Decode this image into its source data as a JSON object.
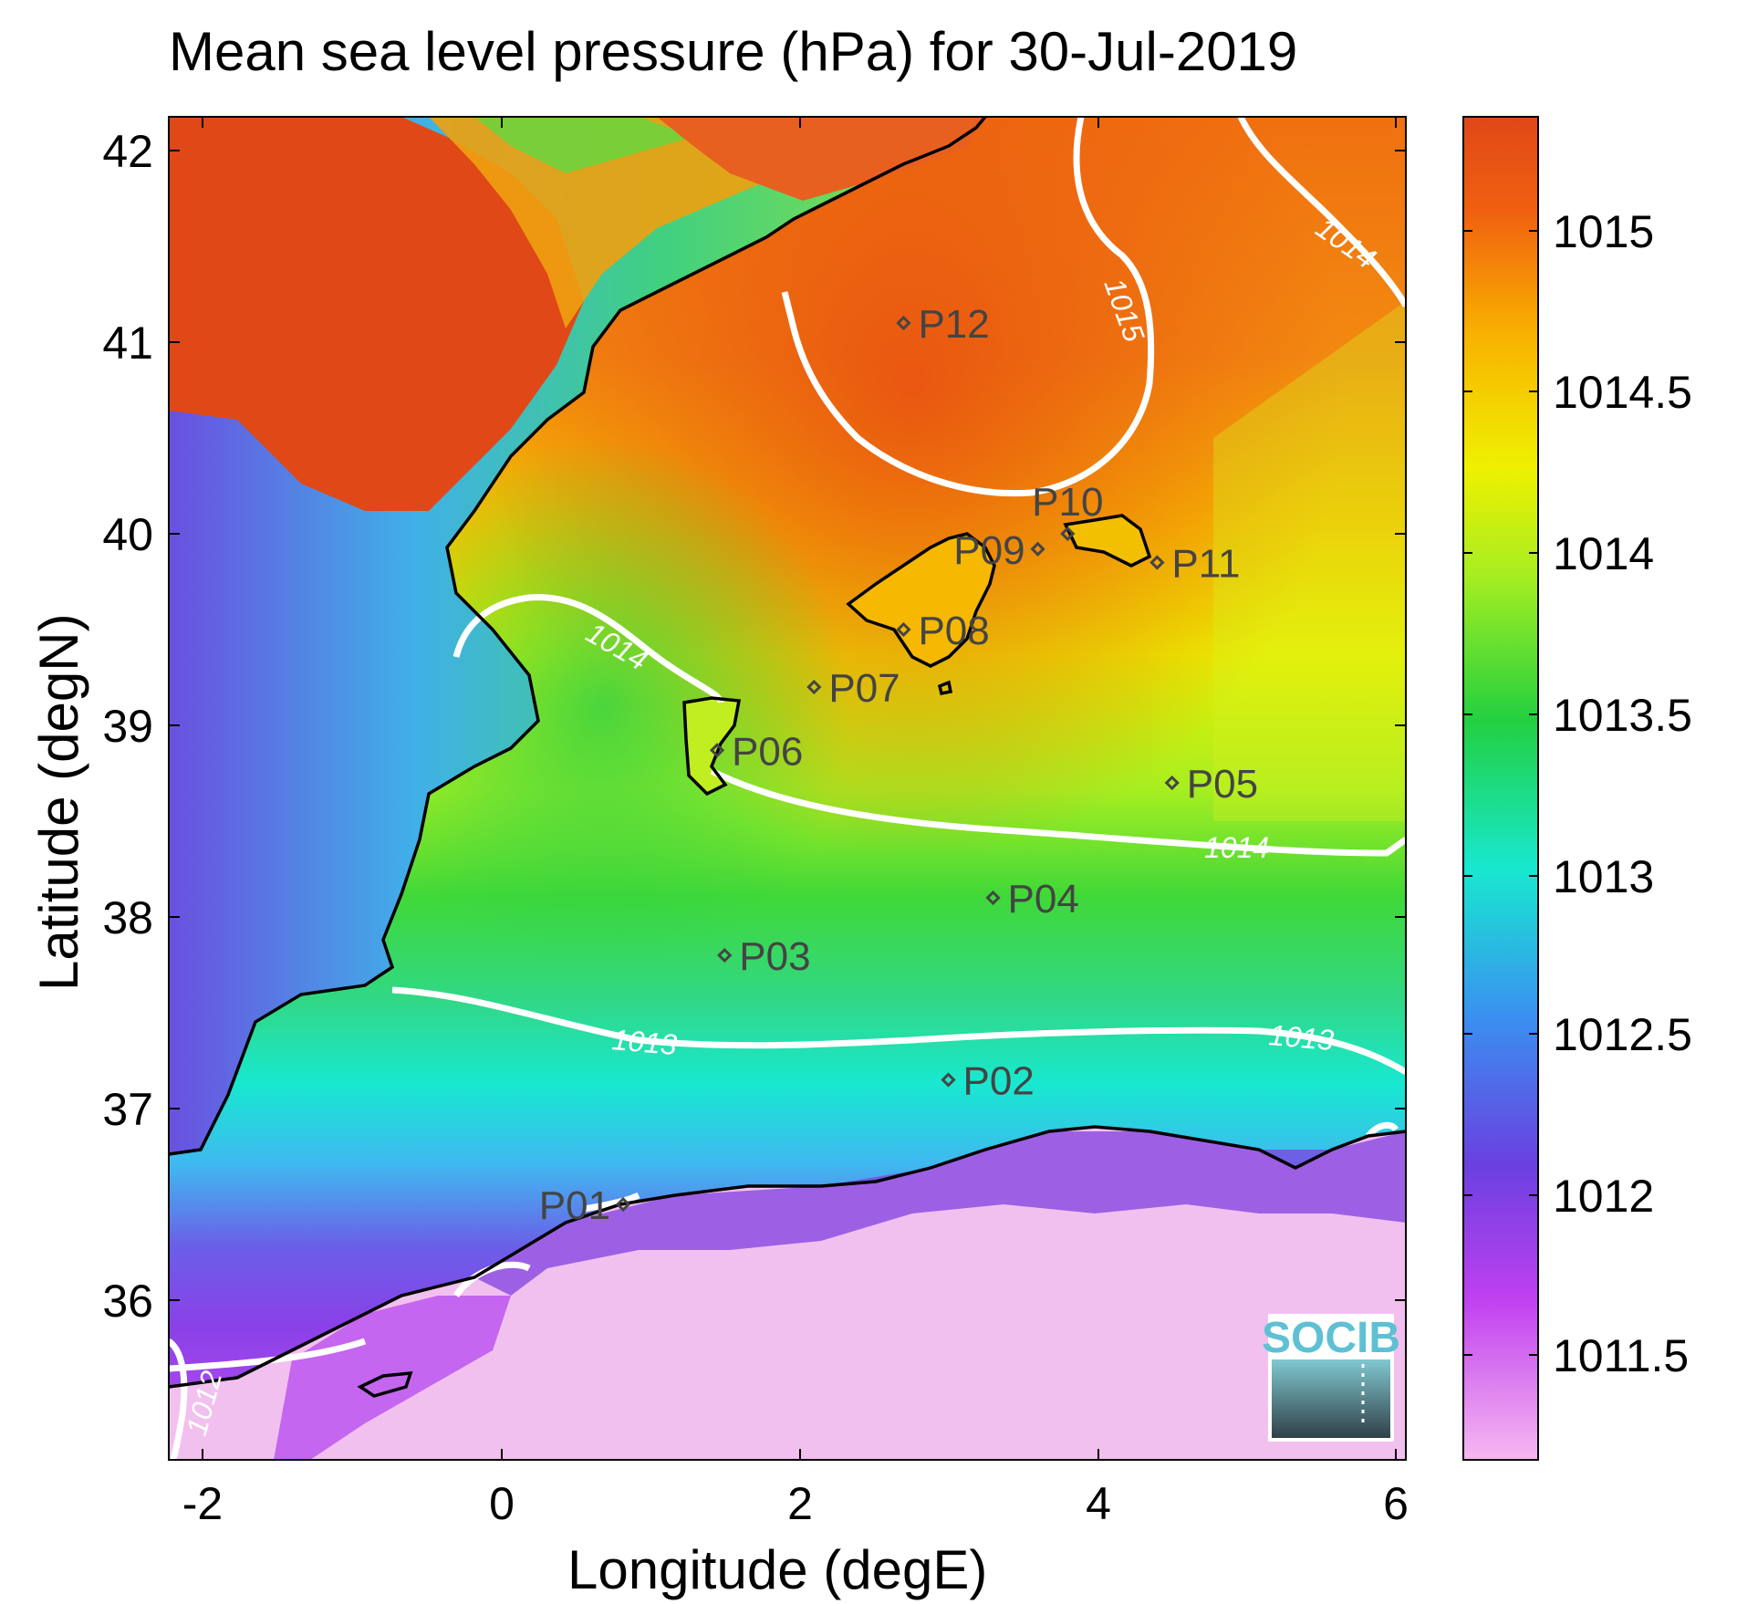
{
  "title": "Mean sea level pressure (hPa) for 30-Jul-2019",
  "xlabel": "Longitude (degE)",
  "ylabel": "Latitude (degN)",
  "x_ticks": [
    "-2",
    "0",
    "2",
    "4",
    "6"
  ],
  "y_ticks": [
    "42",
    "41",
    "40",
    "39",
    "38",
    "37",
    "36"
  ],
  "colorbar_ticks": [
    "1015",
    "1014.5",
    "1014",
    "1013.5",
    "1013",
    "1012.5",
    "1012",
    "1011.5"
  ],
  "logo": "SOCIB",
  "contour_labels": [
    {
      "text": "1015"
    },
    {
      "text": "1014"
    },
    {
      "text": "1014"
    },
    {
      "text": "1014"
    },
    {
      "text": "1013"
    },
    {
      "text": "1013"
    },
    {
      "text": "1012"
    }
  ],
  "stations": [
    {
      "name": "P01",
      "lon": 0.82,
      "lat": 36.5
    },
    {
      "name": "P02",
      "lon": 3.0,
      "lat": 37.15
    },
    {
      "name": "P03",
      "lon": 1.5,
      "lat": 37.8
    },
    {
      "name": "P04",
      "lon": 3.3,
      "lat": 38.1
    },
    {
      "name": "P05",
      "lon": 4.5,
      "lat": 38.7
    },
    {
      "name": "P06",
      "lon": 1.45,
      "lat": 38.87
    },
    {
      "name": "P07",
      "lon": 2.1,
      "lat": 39.2
    },
    {
      "name": "P08",
      "lon": 2.7,
      "lat": 39.5
    },
    {
      "name": "P09",
      "lon": 3.6,
      "lat": 39.92
    },
    {
      "name": "P10",
      "lon": 3.8,
      "lat": 40.0
    },
    {
      "name": "P11",
      "lon": 4.4,
      "lat": 39.85
    },
    {
      "name": "P12",
      "lon": 2.7,
      "lat": 41.1
    }
  ],
  "chart_data": {
    "type": "heatmap",
    "title": "Mean sea level pressure (hPa) for 30-Jul-2019",
    "xlabel": "Longitude (degE)",
    "ylabel": "Latitude (degN)",
    "xlim": [
      -2.25,
      6.05
    ],
    "ylim": [
      35.2,
      42.2
    ],
    "colorbar_range": [
      1011.2,
      1015.35
    ],
    "colormap": [
      "#f6b8f0",
      "#c040f0",
      "#6a40e0",
      "#3a90f0",
      "#18e8d0",
      "#22d040",
      "#a8ee20",
      "#f0f000",
      "#f8b000",
      "#f06010",
      "#e04818"
    ],
    "contour_levels": [
      1012,
      1013,
      1014,
      1015
    ],
    "contour_color": "#ffffff",
    "coastline_color": "#000000"
  }
}
